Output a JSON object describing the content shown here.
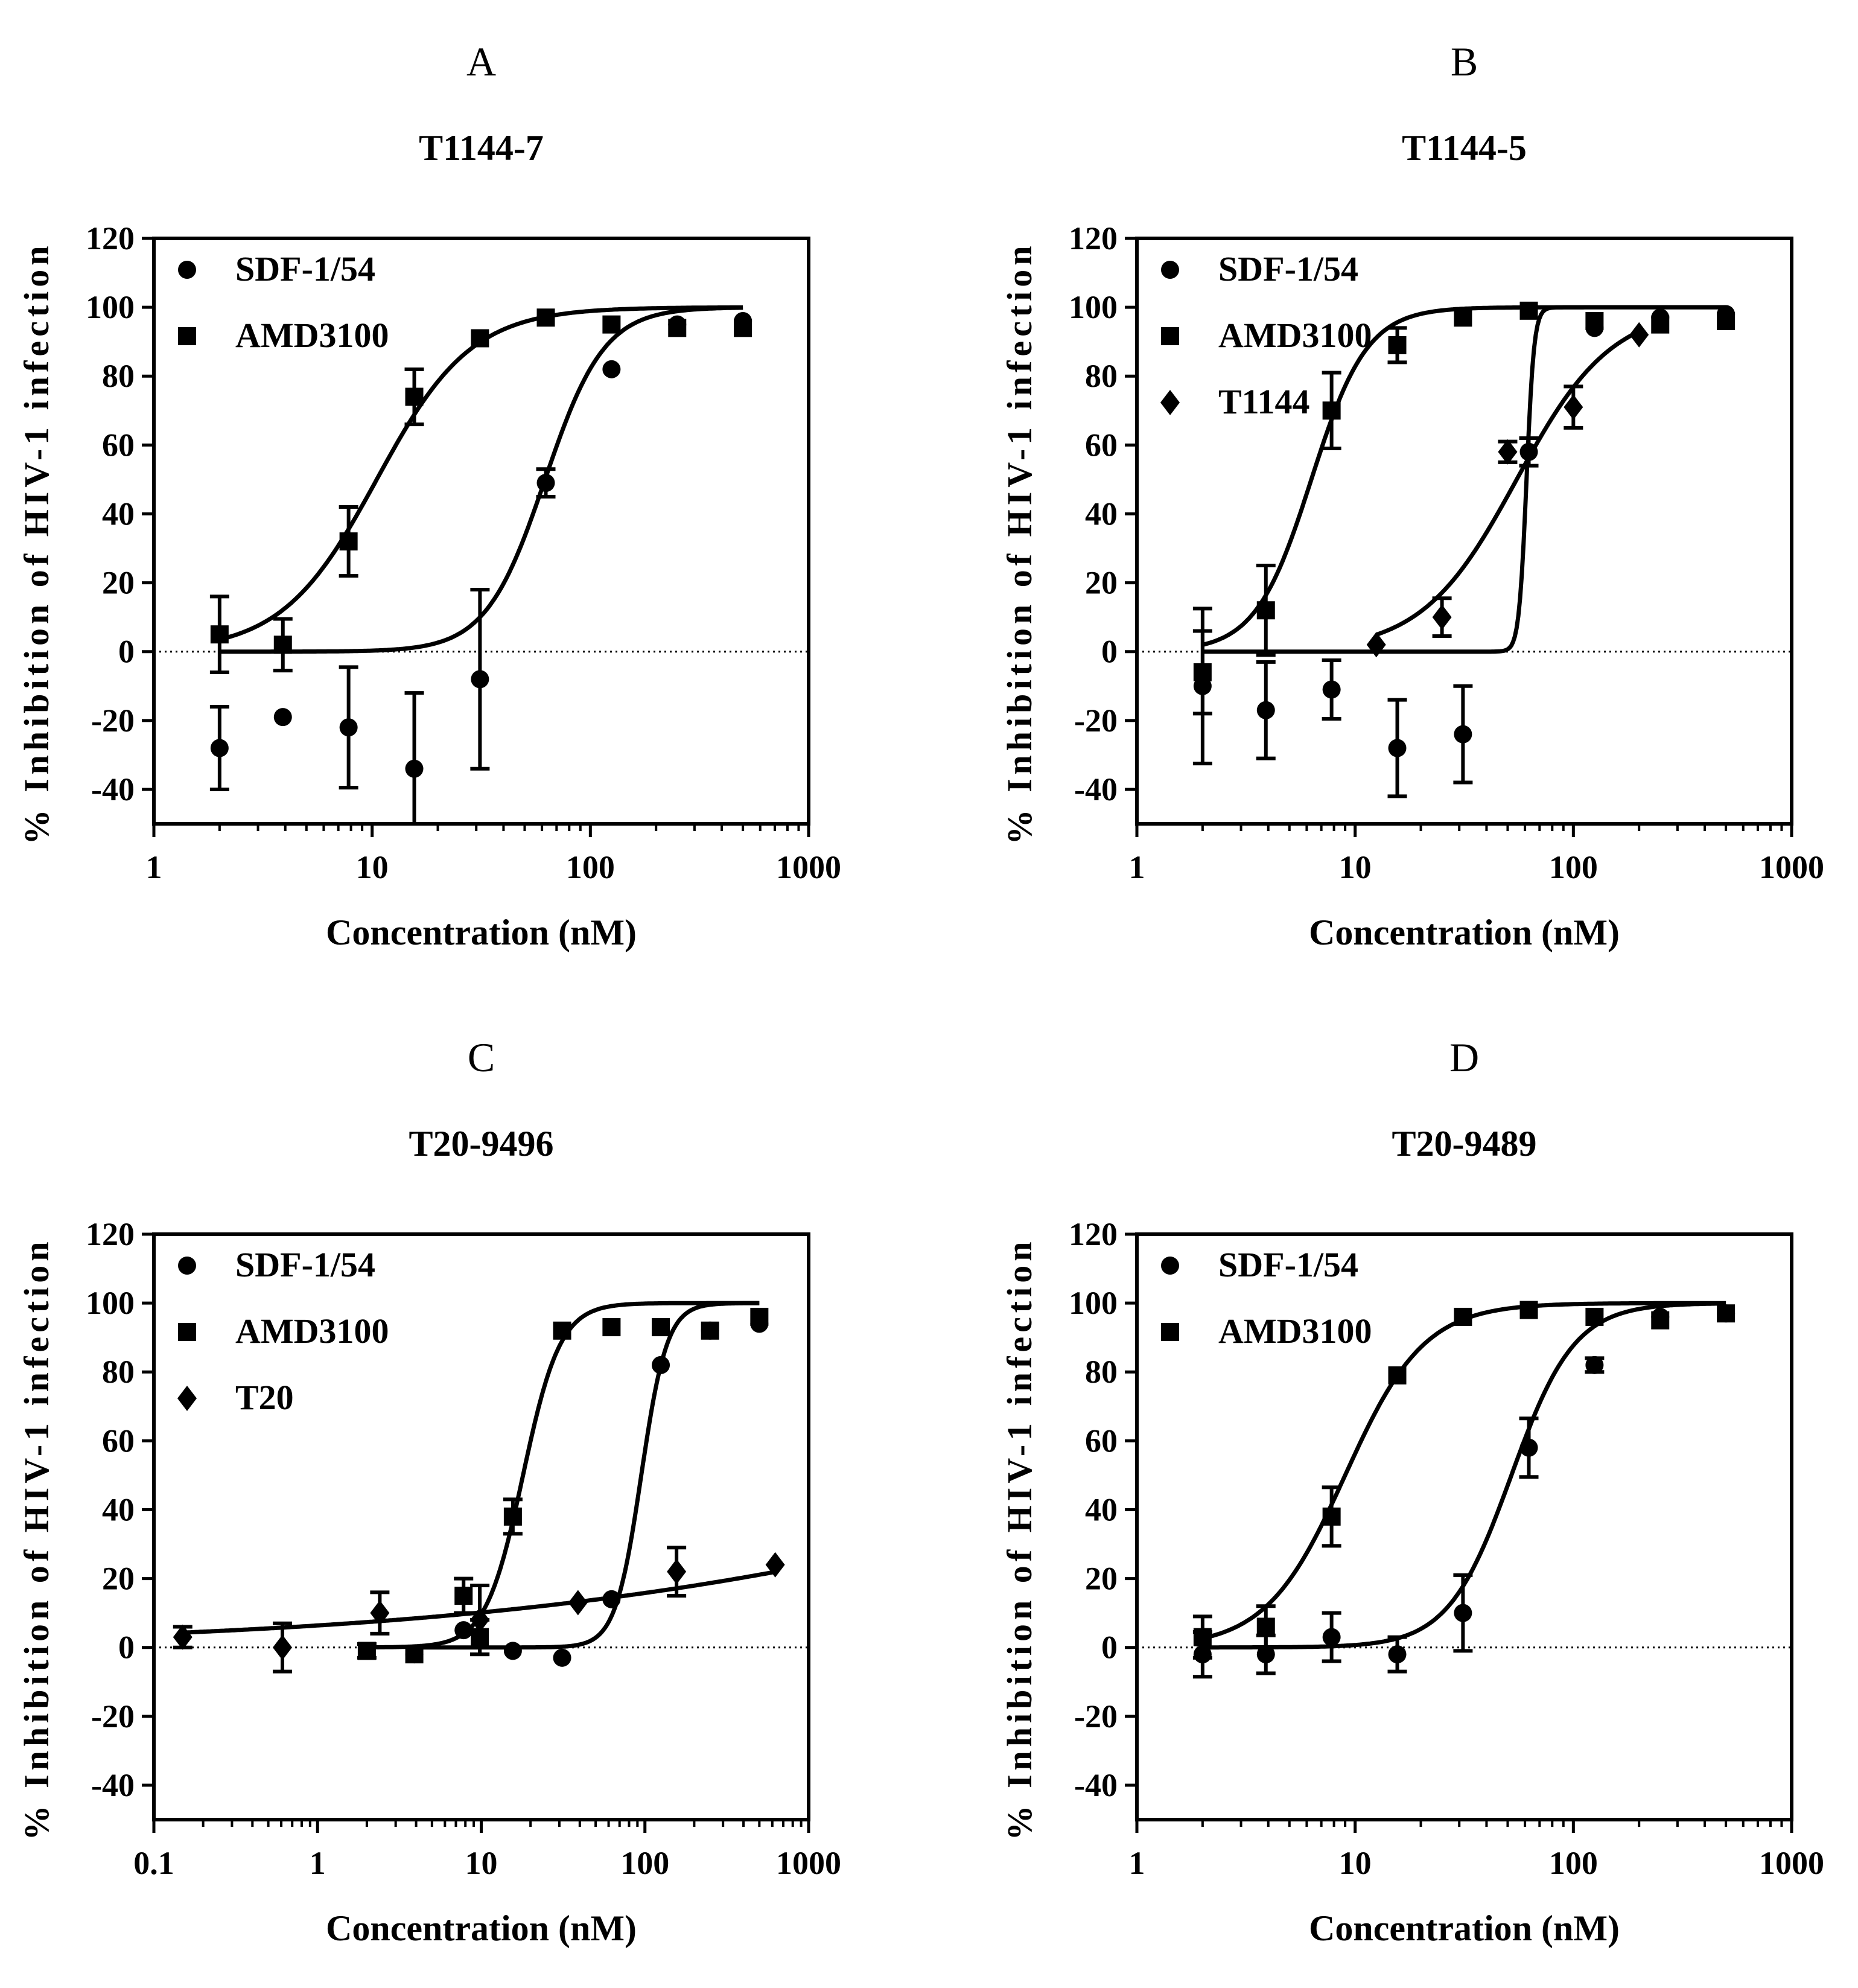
{
  "chart_data": [
    {
      "type": "scatter",
      "panel_letter": "A",
      "title": "T1144-7",
      "xlabel": "Concentration (nM)",
      "ylabel": "% Inhibition of HIV-1 infection",
      "xscale": "log",
      "xlim": [
        1,
        1000
      ],
      "ylim": [
        -50,
        120
      ],
      "xticks": [
        "1",
        "10",
        "100",
        "1000"
      ],
      "yticks": [
        "-40",
        "-20",
        "0",
        "20",
        "40",
        "60",
        "80",
        "100",
        "120"
      ],
      "legend_position": "top-left",
      "zero_line": "dotted",
      "series": [
        {
          "name": "SDF-1/54",
          "marker": "circle",
          "points": [
            {
              "x": 2,
              "y": -28,
              "err": 12
            },
            {
              "x": 3.9,
              "y": -19,
              "err": 0
            },
            {
              "x": 7.8,
              "y": -22,
              "err": 17.5
            },
            {
              "x": 15.6,
              "y": -34,
              "err": 22
            },
            {
              "x": 31.2,
              "y": -8,
              "err": 26
            },
            {
              "x": 62.5,
              "y": 49,
              "err": 4
            },
            {
              "x": 125,
              "y": 82,
              "err": 0
            },
            {
              "x": 250,
              "y": 95,
              "err": 0
            },
            {
              "x": 500,
              "y": 96,
              "err": 0
            }
          ],
          "fit": {
            "bottom": 0,
            "top": 100,
            "ec50": 62,
            "hill": 3.2
          }
        },
        {
          "name": "AMD3100",
          "marker": "square",
          "points": [
            {
              "x": 2,
              "y": 5,
              "err": 11
            },
            {
              "x": 3.9,
              "y": 2,
              "err": 7.5
            },
            {
              "x": 7.8,
              "y": 32,
              "err": 10
            },
            {
              "x": 15.6,
              "y": 74,
              "err": 8
            },
            {
              "x": 31.2,
              "y": 91,
              "err": 0
            },
            {
              "x": 62.5,
              "y": 97,
              "err": 0
            },
            {
              "x": 125,
              "y": 95,
              "err": 0
            },
            {
              "x": 250,
              "y": 94,
              "err": 0
            },
            {
              "x": 500,
              "y": 94,
              "err": 0
            }
          ],
          "fit": {
            "bottom": 0,
            "top": 100,
            "ec50": 10.5,
            "hill": 2.0
          }
        }
      ]
    },
    {
      "type": "scatter",
      "panel_letter": "B",
      "title": "T1144-5",
      "xlabel": "Concentration (nM)",
      "ylabel": "% Inhibition of HIV-1 infection",
      "xscale": "log",
      "xlim": [
        1,
        1000
      ],
      "ylim": [
        -50,
        120
      ],
      "xticks": [
        "1",
        "10",
        "100",
        "1000"
      ],
      "yticks": [
        "-40",
        "-20",
        "0",
        "20",
        "40",
        "60",
        "80",
        "100",
        "120"
      ],
      "legend_position": "top-left",
      "zero_line": "dotted",
      "series": [
        {
          "name": "SDF-1/54",
          "marker": "circle",
          "points": [
            {
              "x": 2,
              "y": -10,
              "err": 22.5
            },
            {
              "x": 3.9,
              "y": -17,
              "err": 14
            },
            {
              "x": 7.8,
              "y": -11,
              "err": 8.5
            },
            {
              "x": 15.6,
              "y": -28,
              "err": 14
            },
            {
              "x": 31.2,
              "y": -24,
              "err": 14
            },
            {
              "x": 62.5,
              "y": 58,
              "err": 4
            },
            {
              "x": 125,
              "y": 94,
              "err": 0
            },
            {
              "x": 250,
              "y": 97,
              "err": 0
            },
            {
              "x": 500,
              "y": 98,
              "err": 0
            }
          ],
          "fit": {
            "bottom": 0,
            "top": 100,
            "ec50": 61,
            "hill": 25
          }
        },
        {
          "name": "AMD3100",
          "marker": "square",
          "points": [
            {
              "x": 2,
              "y": -6,
              "err": 12
            },
            {
              "x": 3.9,
              "y": 12,
              "err": 13
            },
            {
              "x": 7.8,
              "y": 70,
              "err": 11
            },
            {
              "x": 15.6,
              "y": 89,
              "err": 5
            },
            {
              "x": 31.2,
              "y": 97,
              "err": 0
            },
            {
              "x": 62.5,
              "y": 99,
              "err": 0
            },
            {
              "x": 125,
              "y": 96,
              "err": 0
            },
            {
              "x": 250,
              "y": 95,
              "err": 0
            },
            {
              "x": 500,
              "y": 96,
              "err": 0
            }
          ],
          "fit": {
            "bottom": 0,
            "top": 100,
            "ec50": 6.3,
            "hill": 3.4
          }
        },
        {
          "name": "T1144",
          "marker": "diamond",
          "points": [
            {
              "x": 12.5,
              "y": 2,
              "err": 0
            },
            {
              "x": 25,
              "y": 10,
              "err": 5.5
            },
            {
              "x": 50,
              "y": 58,
              "err": 3
            },
            {
              "x": 100,
              "y": 71,
              "err": 6
            },
            {
              "x": 200,
              "y": 92,
              "err": 0
            }
          ],
          "fit": {
            "bottom": 0,
            "top": 100,
            "ec50": 55,
            "hill": 2.0
          }
        }
      ]
    },
    {
      "type": "scatter",
      "panel_letter": "C",
      "title": "T20-9496",
      "xlabel": "Concentration (nM)",
      "ylabel": "% Inhibition of HIV-1 infection",
      "xscale": "log",
      "xlim": [
        0.1,
        1000
      ],
      "ylim": [
        -50,
        120
      ],
      "xticks": [
        "0.1",
        "1",
        "10",
        "100",
        "1000"
      ],
      "yticks": [
        "-40",
        "-20",
        "0",
        "20",
        "40",
        "60",
        "80",
        "100",
        "120"
      ],
      "legend_position": "top-left",
      "zero_line": "dotted",
      "series": [
        {
          "name": "SDF-1/54",
          "marker": "circle",
          "points": [
            {
              "x": 3.9,
              "y": -2,
              "err": 0
            },
            {
              "x": 7.8,
              "y": 5,
              "err": 0
            },
            {
              "x": 15.6,
              "y": -1,
              "err": 0
            },
            {
              "x": 31.2,
              "y": -3,
              "err": 0
            },
            {
              "x": 62.5,
              "y": 14,
              "err": 0
            },
            {
              "x": 125,
              "y": 82,
              "err": 0
            },
            {
              "x": 250,
              "y": 92,
              "err": 0
            },
            {
              "x": 500,
              "y": 94,
              "err": 0
            }
          ],
          "fit": {
            "bottom": 0,
            "top": 100,
            "ec50": 95,
            "hill": 5.5
          }
        },
        {
          "name": "AMD3100",
          "marker": "square",
          "points": [
            {
              "x": 2,
              "y": -1,
              "err": 2
            },
            {
              "x": 3.9,
              "y": -2,
              "err": 0
            },
            {
              "x": 7.8,
              "y": 15,
              "err": 5
            },
            {
              "x": 9.8,
              "y": 3,
              "err": 5
            },
            {
              "x": 15.6,
              "y": 38,
              "err": 5
            },
            {
              "x": 31.2,
              "y": 92,
              "err": 0
            },
            {
              "x": 62.5,
              "y": 93,
              "err": 0
            },
            {
              "x": 125,
              "y": 93,
              "err": 0
            },
            {
              "x": 250,
              "y": 92,
              "err": 0
            },
            {
              "x": 500,
              "y": 96,
              "err": 0
            }
          ],
          "fit": {
            "bottom": 0,
            "top": 100,
            "ec50": 18,
            "hill": 3.8
          }
        },
        {
          "name": "T20",
          "marker": "diamond",
          "points": [
            {
              "x": 0.15,
              "y": 3,
              "err": 3
            },
            {
              "x": 0.61,
              "y": 0,
              "err": 7
            },
            {
              "x": 2.4,
              "y": 10,
              "err": 6
            },
            {
              "x": 9.8,
              "y": 8,
              "err": 10
            },
            {
              "x": 39,
              "y": 13,
              "err": 0
            },
            {
              "x": 156,
              "y": 22,
              "err": 7
            },
            {
              "x": 625,
              "y": 24,
              "err": 0
            }
          ],
          "fit": {
            "bottom": 0,
            "top": 100,
            "ec50": 200000,
            "hill": 0.22
          }
        }
      ]
    },
    {
      "type": "scatter",
      "panel_letter": "D",
      "title": "T20-9489",
      "xlabel": "Concentration (nM)",
      "ylabel": "% Inhibition of HIV-1 infection",
      "xscale": "log",
      "xlim": [
        1,
        1000
      ],
      "ylim": [
        -50,
        120
      ],
      "xticks": [
        "1",
        "10",
        "100",
        "1000"
      ],
      "yticks": [
        "-40",
        "-20",
        "0",
        "20",
        "40",
        "60",
        "80",
        "100",
        "120"
      ],
      "legend_position": "top-left",
      "zero_line": "dotted",
      "series": [
        {
          "name": "SDF-1/54",
          "marker": "circle",
          "points": [
            {
              "x": 2,
              "y": -2,
              "err": 6.5
            },
            {
              "x": 3.9,
              "y": -2,
              "err": 5.5
            },
            {
              "x": 7.8,
              "y": 3,
              "err": 7
            },
            {
              "x": 15.6,
              "y": -2,
              "err": 5
            },
            {
              "x": 31.2,
              "y": 10,
              "err": 11
            },
            {
              "x": 62.5,
              "y": 58,
              "err": 8.5
            },
            {
              "x": 125,
              "y": 82,
              "err": 2
            },
            {
              "x": 250,
              "y": 96,
              "err": 0
            },
            {
              "x": 500,
              "y": 97,
              "err": 0
            }
          ],
          "fit": {
            "bottom": 0,
            "top": 100,
            "ec50": 52,
            "hill": 3.0
          }
        },
        {
          "name": "AMD3100",
          "marker": "square",
          "points": [
            {
              "x": 2,
              "y": 3,
              "err": 6
            },
            {
              "x": 3.9,
              "y": 6,
              "err": 6
            },
            {
              "x": 7.8,
              "y": 38,
              "err": 8.5
            },
            {
              "x": 15.6,
              "y": 79,
              "err": 0
            },
            {
              "x": 31.2,
              "y": 96,
              "err": 0
            },
            {
              "x": 62.5,
              "y": 98,
              "err": 0
            },
            {
              "x": 125,
              "y": 96,
              "err": 0
            },
            {
              "x": 250,
              "y": 95,
              "err": 0
            },
            {
              "x": 500,
              "y": 97,
              "err": 0
            }
          ],
          "fit": {
            "bottom": 0,
            "top": 100,
            "ec50": 9,
            "hill": 2.4
          }
        }
      ]
    }
  ]
}
